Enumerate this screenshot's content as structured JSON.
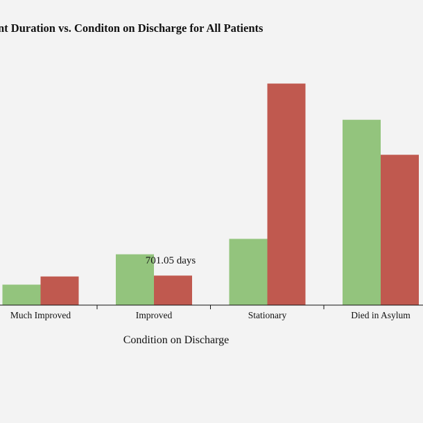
{
  "chart_data": {
    "type": "bar",
    "title": "nt Duration vs. Conditon on Discharge for All Patients",
    "xlabel": "Condition on Discharge",
    "ylabel": "",
    "categories": [
      "Much Improved",
      "Improved",
      "Stationary",
      "Died in Asylum"
    ],
    "ylim": [
      0,
      3000
    ],
    "series": [
      {
        "color": "#93c47d",
        "values": [
          276,
          685,
          893,
          2498
        ]
      },
      {
        "color": "#c0594f",
        "values": [
          386,
          398,
          2986,
          2026
        ]
      }
    ],
    "annotation": {
      "text": "701.05 days"
    },
    "grid": false,
    "legend": "none"
  }
}
